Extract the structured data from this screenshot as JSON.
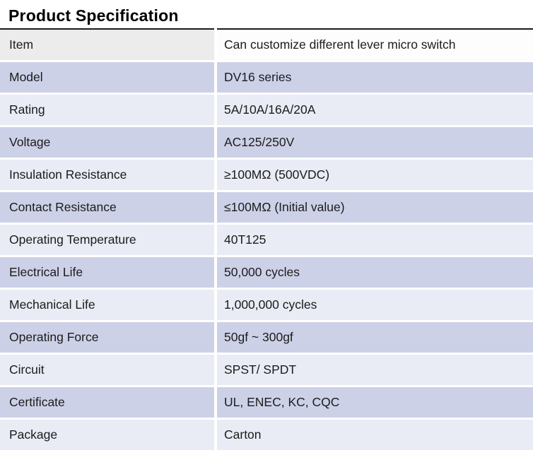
{
  "page_title": "Product Specification",
  "table": {
    "columns": [
      "label",
      "value"
    ],
    "rows": [
      {
        "label": "Item",
        "value": "Can customize different lever micro switch",
        "shade": "header"
      },
      {
        "label": "Model",
        "value": "DV16 series",
        "shade": "dark"
      },
      {
        "label": "Rating",
        "value": "5A/10A/16A/20A",
        "shade": "light"
      },
      {
        "label": "Voltage",
        "value": "AC125/250V",
        "shade": "dark"
      },
      {
        "label": "Insulation Resistance",
        "value": "≥100MΩ (500VDC)",
        "shade": "light"
      },
      {
        "label": "Contact Resistance",
        "value": "≤100MΩ (Initial value)",
        "shade": "dark"
      },
      {
        "label": "Operating Temperature",
        "value": "40T125",
        "shade": "light"
      },
      {
        "label": "Electrical Life",
        "value": "50,000 cycles",
        "shade": "dark"
      },
      {
        "label": "Mechanical Life",
        "value": "1,000,000 cycles",
        "shade": "light"
      },
      {
        "label": "Operating Force",
        "value": "50gf ~ 300gf",
        "shade": "dark"
      },
      {
        "label": "Circuit",
        "value": "SPST/ SPDT",
        "shade": "light"
      },
      {
        "label": "Certificate",
        "value": "UL, ENEC, KC, CQC",
        "shade": "dark"
      },
      {
        "label": "Package",
        "value": "Carton",
        "shade": "light"
      }
    ],
    "colors": {
      "header_label_bg": "#ececec",
      "header_value_bg": "#fdfdfd",
      "dark_bg": "#ccd1e7",
      "light_bg": "#e9ebf5",
      "top_border": "#1a1a1a",
      "gap": "#ffffff",
      "text": "#1c1c1c"
    }
  }
}
